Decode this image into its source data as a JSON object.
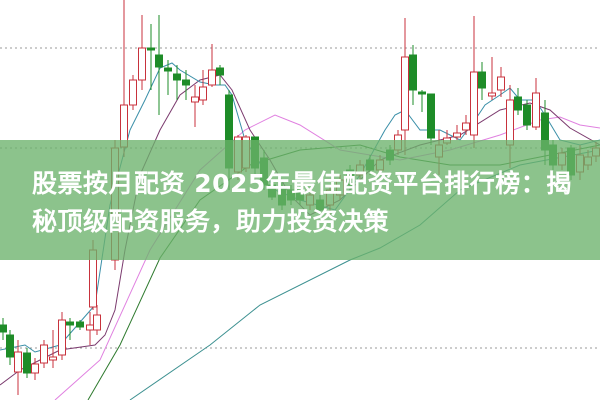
{
  "headline": "股票按月配资 2025年最佳配资平台排行榜：揭秘顶级配资服务，助力投资决策",
  "colors": {
    "up_candle": "#c8323c",
    "down_candle": "#1e8c28",
    "banner": "#6cb26c",
    "ma_short": "#3a8fa8",
    "ma_mid": "#7b3a6e",
    "ma_pink": "#e080e0",
    "ma_long_green": "#2e7a2e",
    "ma_long_teal": "#3c9090",
    "gridline": "#999999"
  }
}
